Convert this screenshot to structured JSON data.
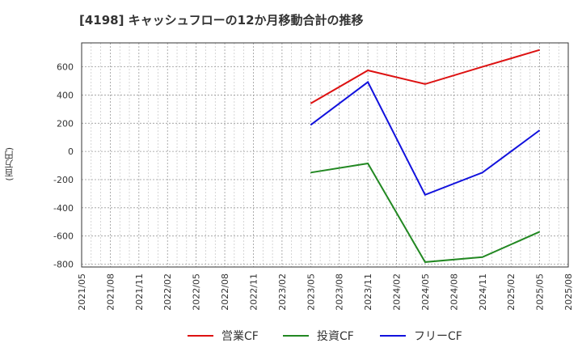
{
  "chart_data": {
    "type": "line",
    "title": "[4198]  キャッシュフローの12か月移動合計の推移",
    "ylabel": "(百万円)",
    "xlabel": "",
    "ylim": [
      -820,
      770
    ],
    "yticks": [
      600,
      400,
      200,
      0,
      -200,
      -400,
      -600,
      -800
    ],
    "categories": [
      "2021/05",
      "2021/08",
      "2021/11",
      "2022/02",
      "2022/05",
      "2022/08",
      "2022/11",
      "2023/02",
      "2023/05",
      "2023/08",
      "2023/11",
      "2024/02",
      "2024/05",
      "2024/08",
      "2024/11",
      "2025/02",
      "2025/05",
      "2025/08"
    ],
    "series": [
      {
        "name": "営業CF",
        "color": "#dd1111",
        "x": [
          "2023/05",
          "2023/11",
          "2024/05",
          "2024/11",
          "2025/05"
        ],
        "values": [
          340,
          575,
          478,
          600,
          720
        ]
      },
      {
        "name": "投資CF",
        "color": "#228822",
        "x": [
          "2023/05",
          "2023/11",
          "2024/05",
          "2024/11",
          "2025/05"
        ],
        "values": [
          -150,
          -85,
          -785,
          -750,
          -570
        ]
      },
      {
        "name": "フリーCF",
        "color": "#1111dd",
        "x": [
          "2023/05",
          "2023/11",
          "2024/05",
          "2024/11",
          "2025/05"
        ],
        "values": [
          188,
          492,
          -308,
          -150,
          150
        ]
      }
    ],
    "grid": true,
    "legend": "bottom"
  }
}
